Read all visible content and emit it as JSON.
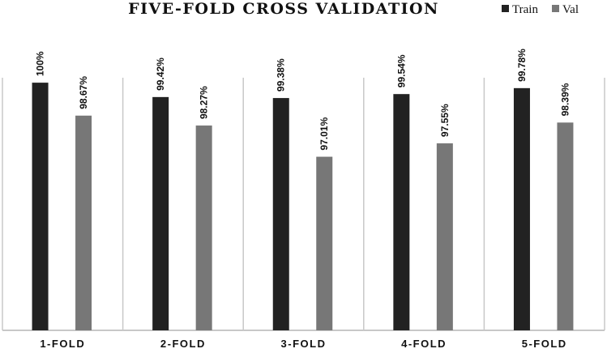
{
  "chart_data": {
    "type": "bar",
    "title": "FIVE-FOLD CROSS VALIDATION",
    "xlabel": "",
    "ylabel": "",
    "categories": [
      "1-FOLD",
      "2-FOLD",
      "3-FOLD",
      "4-FOLD",
      "5-FOLD"
    ],
    "series": [
      {
        "name": "Train",
        "color": "#222222",
        "values": [
          100,
          99.42,
          99.38,
          99.54,
          99.78
        ],
        "labels": [
          "100%",
          "99.42%",
          "99.38%",
          "99.54%",
          "99.78%"
        ]
      },
      {
        "name": "Val",
        "color": "#777777",
        "values": [
          98.67,
          98.27,
          97.01,
          97.55,
          98.39
        ],
        "labels": [
          "98.67%",
          "98.27%",
          "97.01%",
          "97.55%",
          "98.39%"
        ]
      }
    ],
    "ylim": [
      90,
      100.2
    ],
    "grid": false,
    "legend_position": "top-right",
    "data_labels": true,
    "axis_color": "#c8c8c8"
  }
}
